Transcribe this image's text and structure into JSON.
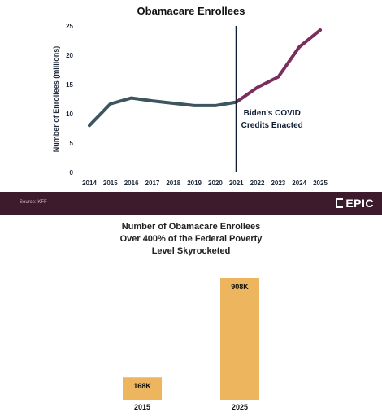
{
  "chart_data": [
    {
      "type": "line",
      "title": "Obamacare Enrollees",
      "ylabel": "Number of Enrollees (millions)",
      "xlabel": "",
      "ylim": [
        0,
        25
      ],
      "yticks": [
        "0",
        "5",
        "10",
        "15",
        "20",
        "25"
      ],
      "x": [
        "2014",
        "2015",
        "2016",
        "2017",
        "2018",
        "2019",
        "2020",
        "2021",
        "2022",
        "2023",
        "2024",
        "2025"
      ],
      "series": [
        {
          "values": [
            8.0,
            11.7,
            12.7,
            12.2,
            11.8,
            11.4,
            11.4,
            12.0,
            null,
            null,
            null,
            null
          ],
          "color": "#3d5560"
        },
        {
          "values": [
            null,
            null,
            null,
            null,
            null,
            null,
            null,
            12.0,
            14.5,
            16.3,
            21.4,
            24.3
          ],
          "color": "#7a2d5e"
        }
      ],
      "annotation": {
        "x": "2021",
        "text_line1": "Biden's COVID",
        "text_line2": "Credits Enacted"
      },
      "grid": false
    },
    {
      "type": "bar",
      "title_line1": "Number of Obamacare Enrollees",
      "title_line2": "Over 400% of the Federal Poverty",
      "title_line3": "Level Skyrocketed",
      "categories": [
        "2015",
        "2025"
      ],
      "values": [
        168,
        908
      ],
      "labels": [
        "168K",
        "908K"
      ],
      "color": "#edb55e"
    }
  ],
  "footer": {
    "source": "Source: KFF",
    "brand": "EPIC"
  }
}
